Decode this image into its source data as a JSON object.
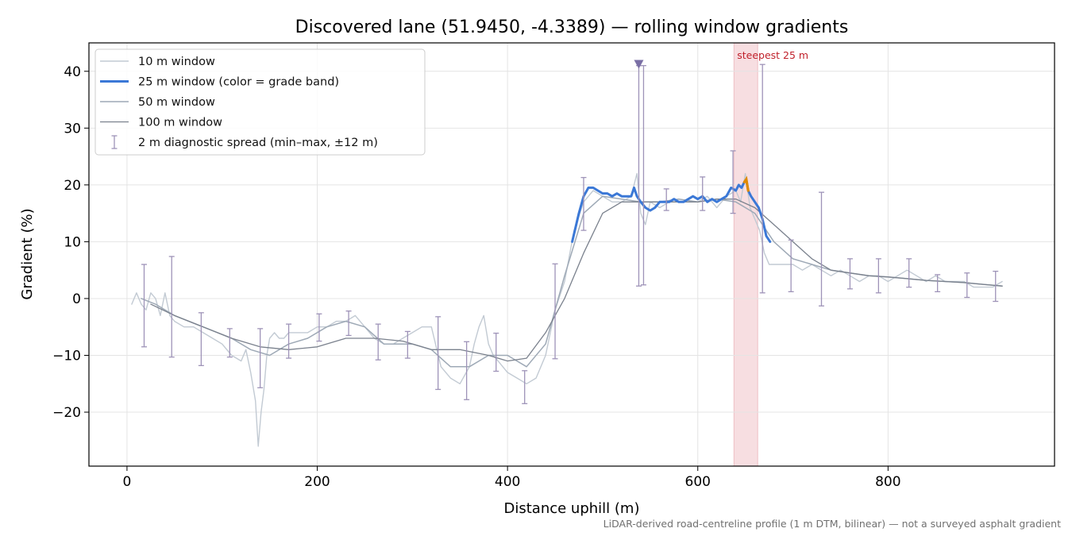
{
  "chart_data": {
    "type": "line",
    "title": "Discovered lane (51.9450, -4.3389) — rolling window gradients",
    "xlabel": "Distance uphill (m)",
    "ylabel": "Gradient (%)",
    "xlim": [
      -40,
      975
    ],
    "ylim": [
      -29.5,
      45
    ],
    "x_ticks": [
      0,
      200,
      400,
      600,
      800
    ],
    "y_ticks": [
      -20,
      -10,
      0,
      10,
      20,
      30,
      40
    ],
    "x_tick_labels": [
      "0",
      "200",
      "400",
      "600",
      "800"
    ],
    "y_tick_labels": [
      "−20",
      "−10",
      "0",
      "10",
      "20",
      "30",
      "40"
    ],
    "grid": true,
    "legend_position": "upper-left",
    "series": [
      {
        "name": "10 m window",
        "color": "#c2cad3",
        "x": [
          5,
          10,
          15,
          20,
          25,
          30,
          35,
          40,
          45,
          50,
          60,
          70,
          80,
          90,
          100,
          110,
          120,
          125,
          130,
          135,
          138,
          141,
          144,
          147,
          150,
          155,
          160,
          165,
          170,
          180,
          190,
          200,
          210,
          220,
          230,
          240,
          250,
          260,
          270,
          280,
          290,
          300,
          310,
          320,
          330,
          340,
          350,
          360,
          365,
          370,
          375,
          380,
          385,
          390,
          400,
          410,
          420,
          430,
          440,
          450,
          460,
          470,
          480,
          490,
          500,
          510,
          520,
          530,
          536,
          540,
          545,
          550,
          560,
          570,
          580,
          590,
          600,
          610,
          620,
          630,
          640,
          645,
          650,
          655,
          660,
          665,
          670,
          675,
          680,
          690,
          700,
          710,
          720,
          730,
          740,
          750,
          760,
          770,
          780,
          790,
          800,
          810,
          820,
          830,
          840,
          850,
          860,
          870,
          880,
          890,
          900,
          910,
          920
        ],
        "y": [
          -1,
          1,
          -1,
          -2,
          1,
          0,
          -3,
          1,
          -3,
          -4,
          -5,
          -5,
          -6,
          -7,
          -8,
          -10,
          -11,
          -9,
          -13,
          -18,
          -26,
          -20,
          -16,
          -10,
          -7,
          -6,
          -7,
          -7,
          -6,
          -6,
          -6,
          -5,
          -5,
          -4,
          -4,
          -3,
          -5,
          -7,
          -8,
          -8,
          -7,
          -6,
          -5,
          -5,
          -12,
          -14,
          -15,
          -12,
          -8,
          -5,
          -3,
          -8,
          -10,
          -11,
          -13,
          -14,
          -15,
          -14,
          -10,
          -2,
          3,
          12,
          17,
          19,
          18,
          17,
          17,
          18,
          22,
          15,
          13,
          17,
          16,
          17,
          17,
          17,
          17,
          18,
          16,
          18,
          19,
          17,
          22,
          16,
          14,
          12,
          8,
          6,
          6,
          6,
          6,
          5,
          6,
          5,
          4,
          5,
          4,
          3,
          4,
          4,
          3,
          4,
          5,
          4,
          3,
          4,
          3,
          3,
          3,
          2,
          2,
          2,
          3
        ]
      },
      {
        "name": "25 m window (color = grade band)",
        "color": "#3b78d6",
        "band_colors": {
          "default": "#3b78d6",
          "steep": "#e08a00"
        },
        "x": [
          468,
          475,
          480,
          485,
          490,
          495,
          500,
          505,
          510,
          515,
          520,
          525,
          530,
          533,
          536,
          540,
          545,
          550,
          555,
          560,
          565,
          570,
          575,
          580,
          585,
          590,
          595,
          600,
          605,
          610,
          615,
          620,
          625,
          630,
          635,
          640,
          643,
          646,
          649,
          651,
          653,
          656,
          660,
          664,
          668,
          672,
          676
        ],
        "y": [
          10,
          15,
          18,
          19.5,
          19.5,
          19,
          18.5,
          18.5,
          18,
          18.5,
          18,
          18,
          18,
          19.5,
          18,
          17,
          16,
          15.5,
          16,
          17,
          17,
          17,
          17.5,
          17,
          17,
          17.5,
          18,
          17.5,
          18,
          17,
          17.5,
          17,
          17.5,
          18,
          19.5,
          19,
          20,
          19.5,
          20.5,
          21,
          19,
          18,
          17,
          16,
          14,
          11,
          10
        ]
      },
      {
        "name": "50 m window",
        "color": "#9ea9b6",
        "x": [
          15,
          30,
          50,
          80,
          110,
          130,
          150,
          170,
          190,
          210,
          230,
          250,
          270,
          300,
          320,
          340,
          360,
          380,
          400,
          420,
          440,
          460,
          480,
          500,
          520,
          540,
          560,
          580,
          600,
          620,
          640,
          660,
          680,
          700,
          720,
          740,
          760,
          780,
          800,
          820,
          840,
          860,
          880,
          900,
          920
        ],
        "y": [
          0,
          -1,
          -3,
          -5,
          -7,
          -9,
          -10,
          -8,
          -7,
          -5,
          -4,
          -5,
          -8,
          -8,
          -9,
          -12,
          -12,
          -10,
          -10,
          -12,
          -8,
          4,
          15,
          18,
          17.5,
          17,
          17,
          17.5,
          17,
          17.5,
          17,
          15,
          10,
          7,
          6,
          5,
          4.5,
          4,
          3.8,
          3.5,
          3.2,
          3,
          2.8,
          2.5,
          2.2
        ]
      },
      {
        "name": "100 m window",
        "color": "#7a818d",
        "x": [
          25,
          50,
          80,
          110,
          140,
          170,
          200,
          230,
          260,
          290,
          320,
          350,
          380,
          400,
          420,
          440,
          460,
          480,
          500,
          520,
          540,
          560,
          580,
          600,
          620,
          640,
          660,
          680,
          700,
          720,
          740,
          760,
          780,
          800,
          820,
          840,
          860,
          880,
          900,
          920
        ],
        "y": [
          -1,
          -3,
          -5,
          -7,
          -8.5,
          -9,
          -8.5,
          -7,
          -7,
          -7.5,
          -9,
          -9,
          -10,
          -11,
          -10.5,
          -6,
          0,
          8,
          15,
          17,
          17,
          17,
          17,
          17,
          17.5,
          17.5,
          16,
          13,
          10,
          7,
          5,
          4.5,
          4,
          3.8,
          3.5,
          3.2,
          3,
          2.8,
          2.5,
          2.2
        ]
      }
    ],
    "error_bars": {
      "name": "2 m diagnostic spread (min–max, ±12 m)",
      "color": "#9e93b8",
      "points": [
        {
          "x": 18,
          "min": -8.5,
          "max": 6
        },
        {
          "x": 47,
          "min": -10.3,
          "max": 7.4
        },
        {
          "x": 78,
          "min": -11.8,
          "max": -2.5
        },
        {
          "x": 108,
          "min": -10.3,
          "max": -5.3
        },
        {
          "x": 140,
          "min": -15.7,
          "max": -5.3
        },
        {
          "x": 170,
          "min": -10.5,
          "max": -4.5
        },
        {
          "x": 202,
          "min": -7.5,
          "max": -2.7
        },
        {
          "x": 233,
          "min": -6.5,
          "max": -2.2
        },
        {
          "x": 264,
          "min": -10.8,
          "max": -4.5
        },
        {
          "x": 295,
          "min": -10.5,
          "max": -5.8
        },
        {
          "x": 327,
          "min": -16,
          "max": -3.2
        },
        {
          "x": 357,
          "min": -17.8,
          "max": -7.6
        },
        {
          "x": 388,
          "min": -12.8,
          "max": -6.1
        },
        {
          "x": 418,
          "min": -18.5,
          "max": -12.7
        },
        {
          "x": 450,
          "min": -10.6,
          "max": 6.1
        },
        {
          "x": 480,
          "min": 12,
          "max": 21.3
        },
        {
          "x": 538,
          "min": 2.2,
          "max": 41
        },
        {
          "x": 543,
          "min": 2.4,
          "max": 41
        },
        {
          "x": 567,
          "min": 15.5,
          "max": 19.3
        },
        {
          "x": 605,
          "min": 15.5,
          "max": 21.4
        },
        {
          "x": 637,
          "min": 15,
          "max": 26
        },
        {
          "x": 668,
          "min": 1,
          "max": 41.2
        },
        {
          "x": 698,
          "min": 1.2,
          "max": 10.3
        },
        {
          "x": 730,
          "min": -1.3,
          "max": 18.7
        },
        {
          "x": 760,
          "min": 1.7,
          "max": 7
        },
        {
          "x": 790,
          "min": 1,
          "max": 7
        },
        {
          "x": 822,
          "min": 2,
          "max": 7
        },
        {
          "x": 852,
          "min": 1.2,
          "max": 4.2
        },
        {
          "x": 883,
          "min": 0.2,
          "max": 4.5
        },
        {
          "x": 913,
          "min": -0.5,
          "max": 4.8
        }
      ]
    },
    "clipped_marker": {
      "x": 538,
      "y": 41.3,
      "color": "#7a6fa5"
    },
    "highlight_band": {
      "x_start": 638,
      "x_end": 663,
      "label": "steepest 25 m",
      "color": "#e8a0a8"
    },
    "footnote": "LiDAR-derived road-centreline profile (1 m DTM, bilinear) — not a surveyed asphalt gradient"
  }
}
